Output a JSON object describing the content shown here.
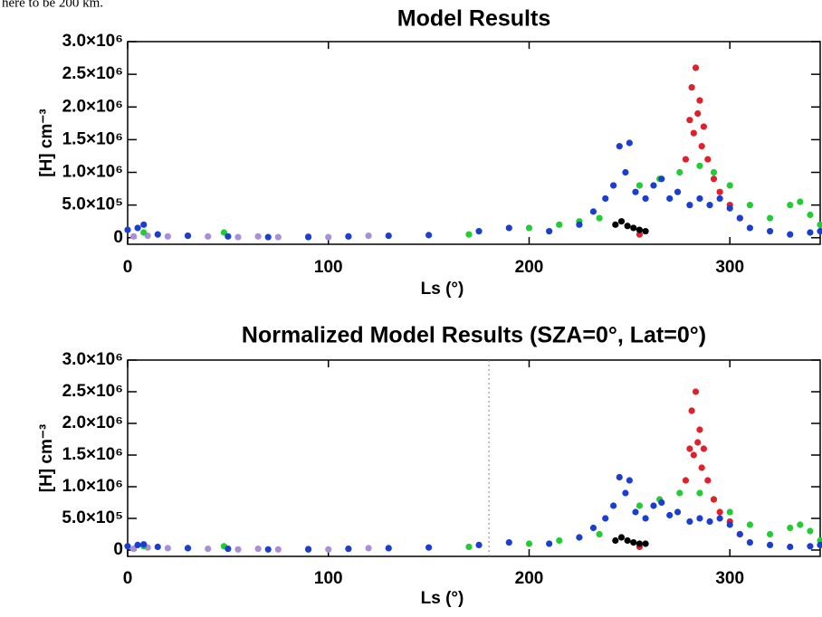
{
  "text_fragment": "here to be 200 km.",
  "chart_data": [
    {
      "type": "scatter",
      "title": "Model Results",
      "xlabel": "Ls (°)",
      "ylabel": "[H] cm⁻³",
      "xlim": [
        0,
        345
      ],
      "ylim": [
        -100000,
        3000000
      ],
      "xticks": [
        0,
        100,
        200,
        300
      ],
      "yticks": [
        {
          "value": 0,
          "label": "0"
        },
        {
          "value": 500000,
          "label": "5.0×10⁵"
        },
        {
          "value": 1000000,
          "label": "1.0×10⁶"
        },
        {
          "value": 1500000,
          "label": "1.5×10⁶"
        },
        {
          "value": 2000000,
          "label": "2.0×10⁶"
        },
        {
          "value": 2500000,
          "label": "2.5×10⁶"
        },
        {
          "value": 3000000,
          "label": "3.0×10⁶"
        }
      ],
      "series": [
        {
          "color": "#a88fd8",
          "x": [
            3,
            10,
            20,
            30,
            40,
            55,
            65,
            75,
            90,
            100,
            110,
            120
          ],
          "values": [
            20000,
            30000,
            20000,
            30000,
            20000,
            10000,
            20000,
            10000,
            20000,
            10000,
            20000,
            30000
          ]
        },
        {
          "color": "#22cc33",
          "x": [
            8,
            48,
            170,
            200,
            215,
            225,
            235,
            255,
            265,
            275,
            285,
            292,
            300,
            310,
            320,
            330,
            335,
            340,
            345
          ],
          "values": [
            80000,
            80000,
            50000,
            150000,
            200000,
            250000,
            300000,
            800000,
            900000,
            1000000,
            1100000,
            1000000,
            800000,
            500000,
            300000,
            500000,
            550000,
            350000,
            200000
          ]
        },
        {
          "color": "#e0202a",
          "x": [
            255,
            278,
            280,
            281,
            282,
            283,
            284,
            285,
            286,
            287,
            289,
            292,
            295,
            300,
            305
          ],
          "values": [
            50000,
            1200000,
            1800000,
            2300000,
            1600000,
            2600000,
            1900000,
            2100000,
            1400000,
            1700000,
            1200000,
            900000,
            700000,
            500000,
            300000
          ]
        },
        {
          "color": "#000000",
          "x": [
            243,
            246,
            249,
            252,
            255,
            258
          ],
          "values": [
            200000,
            250000,
            180000,
            150000,
            120000,
            100000
          ]
        },
        {
          "color": "#1a3fd0",
          "x": [
            0,
            5,
            8,
            15,
            30,
            50,
            70,
            90,
            110,
            130,
            150,
            175,
            190,
            210,
            225,
            232,
            238,
            242,
            245,
            248,
            250,
            253,
            258,
            262,
            266,
            270,
            274,
            280,
            285,
            290,
            295,
            300,
            305,
            310,
            320,
            330,
            340,
            345
          ],
          "values": [
            120000,
            150000,
            200000,
            50000,
            30000,
            20000,
            10000,
            10000,
            20000,
            30000,
            40000,
            100000,
            150000,
            100000,
            200000,
            400000,
            600000,
            800000,
            1400000,
            1000000,
            1450000,
            700000,
            600000,
            800000,
            900000,
            600000,
            700000,
            500000,
            600000,
            500000,
            600000,
            450000,
            300000,
            150000,
            100000,
            50000,
            80000,
            100000
          ]
        }
      ]
    },
    {
      "type": "scatter",
      "title": "Normalized Model Results (SZA=0°, Lat=0°)",
      "xlabel": "Ls (°)",
      "ylabel": "[H] cm⁻³",
      "xlim": [
        0,
        345
      ],
      "ylim": [
        -100000,
        3000000
      ],
      "xticks": [
        0,
        100,
        200,
        300
      ],
      "vline": 180,
      "yticks": [
        {
          "value": 0,
          "label": "0"
        },
        {
          "value": 500000,
          "label": "5.0×10⁵"
        },
        {
          "value": 1000000,
          "label": "1.0×10⁶"
        },
        {
          "value": 1500000,
          "label": "1.5×10⁶"
        },
        {
          "value": 2000000,
          "label": "2.0×10⁶"
        },
        {
          "value": 2500000,
          "label": "2.5×10⁶"
        },
        {
          "value": 3000000,
          "label": "3.0×10⁶"
        }
      ],
      "series": [
        {
          "color": "#a88fd8",
          "x": [
            3,
            10,
            20,
            30,
            40,
            55,
            65,
            75,
            90,
            100,
            110,
            120
          ],
          "values": [
            20000,
            40000,
            30000,
            30000,
            20000,
            10000,
            20000,
            10000,
            20000,
            10000,
            20000,
            30000
          ]
        },
        {
          "color": "#22cc33",
          "x": [
            8,
            48,
            170,
            200,
            215,
            225,
            235,
            255,
            265,
            275,
            285,
            292,
            300,
            310,
            320,
            330,
            335,
            340,
            345
          ],
          "values": [
            60000,
            60000,
            50000,
            100000,
            150000,
            200000,
            250000,
            700000,
            800000,
            900000,
            900000,
            800000,
            600000,
            400000,
            250000,
            350000,
            400000,
            300000,
            150000
          ]
        },
        {
          "color": "#e0202a",
          "x": [
            255,
            278,
            280,
            281,
            282,
            283,
            284,
            285,
            286,
            287,
            289,
            292,
            295,
            300,
            305
          ],
          "values": [
            50000,
            1100000,
            1600000,
            2200000,
            1500000,
            2500000,
            1700000,
            1900000,
            1300000,
            1600000,
            1100000,
            800000,
            600000,
            450000,
            250000
          ]
        },
        {
          "color": "#000000",
          "x": [
            243,
            246,
            249,
            252,
            255,
            258
          ],
          "values": [
            150000,
            200000,
            150000,
            120000,
            100000,
            100000
          ]
        },
        {
          "color": "#1a3fd0",
          "x": [
            0,
            5,
            8,
            15,
            30,
            50,
            70,
            90,
            110,
            130,
            150,
            175,
            190,
            210,
            225,
            232,
            238,
            242,
            245,
            248,
            250,
            253,
            258,
            262,
            266,
            270,
            274,
            280,
            285,
            290,
            295,
            300,
            305,
            310,
            320,
            330,
            340,
            345
          ],
          "values": [
            60000,
            80000,
            90000,
            50000,
            30000,
            20000,
            10000,
            10000,
            20000,
            30000,
            40000,
            80000,
            120000,
            100000,
            200000,
            350000,
            500000,
            700000,
            1150000,
            900000,
            1100000,
            600000,
            500000,
            700000,
            750000,
            550000,
            600000,
            450000,
            500000,
            450000,
            500000,
            400000,
            250000,
            120000,
            80000,
            50000,
            60000,
            80000
          ]
        }
      ]
    }
  ]
}
